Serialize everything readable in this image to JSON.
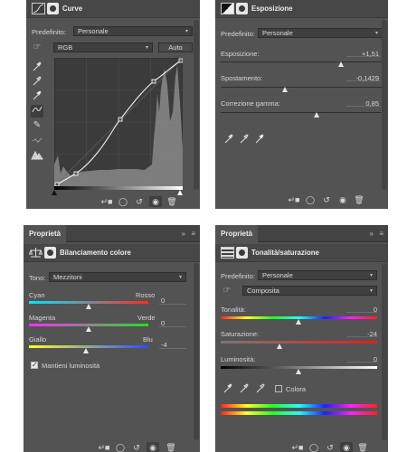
{
  "curves": {
    "title": "Curve",
    "preset_label": "Predefinito:",
    "preset_value": "Personale",
    "channel_value": "RGB",
    "auto_label": "Auto"
  },
  "exposure": {
    "title": "Esposizione",
    "preset_label": "Predefinito:",
    "preset_value": "Personale",
    "exposure_label": "Esposizione:",
    "exposure_value": "+1,51",
    "exposure_level": 0.75,
    "offset_label": "Spostamento:",
    "offset_value": "-0,1429",
    "offset_level": 0.4,
    "gamma_label": "Correzione gamma:",
    "gamma_value": "0,85",
    "gamma_level": 0.6
  },
  "color_balance": {
    "panel_title": "Proprietà",
    "title": "Bilanciamento colore",
    "tone_label": "Tono:",
    "tone_value": "Mezzitoni",
    "sliders": [
      {
        "left": "Cyan",
        "right": "Rosso",
        "value": "0",
        "level": 0.5
      },
      {
        "left": "Magenta",
        "right": "Verde",
        "value": "0",
        "level": 0.5
      },
      {
        "left": "Giallo",
        "right": "Blu",
        "value": "-4",
        "level": 0.48
      }
    ],
    "preserve_label": "Mantieni luminosità",
    "preserve_checked": true
  },
  "hue_sat": {
    "panel_title": "Proprietà",
    "title": "Tonalità/saturazione",
    "preset_label": "Predefinito:",
    "preset_value": "Personale",
    "range_value": "Composita",
    "hue_label": "Tonalità:",
    "hue_value": "0",
    "hue_level": 0.5,
    "sat_label": "Saturazione:",
    "sat_value": "-24",
    "sat_level": 0.38,
    "light_label": "Luminosità:",
    "light_value": "0",
    "light_level": 0.5,
    "colorize_label": "Colora",
    "colorize_checked": false
  },
  "colors": {
    "panel_bg": "#535353",
    "header_bg": "#474747",
    "field_bg": "#3f3f3f"
  }
}
